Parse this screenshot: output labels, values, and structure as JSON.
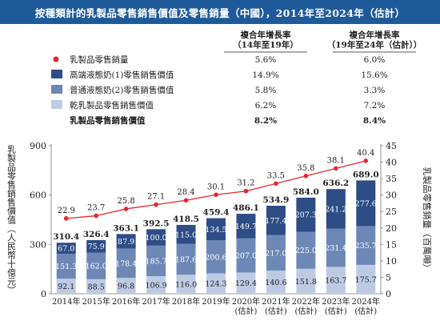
{
  "title": "按種類計的乳製品零售銷售價值及零售銷量（中國），2014年至2024年（估計）",
  "cagr_headers": [
    "複合年增長率\n（14年至19年）",
    "複合年增長率\n（19年至24年（估計））"
  ],
  "legend": [
    {
      "label": "乳製品零售銷量",
      "kind": "line-marker",
      "color": "#e8262c",
      "cagr": [
        "5.6%",
        "6.0%"
      ]
    },
    {
      "label": "高端液態奶(1)零售銷售價值",
      "kind": "box",
      "color": "#2e4d86",
      "cagr": [
        "14.9%",
        "15.6%"
      ]
    },
    {
      "label": "普通液態奶(2)零售銷售價值",
      "kind": "box",
      "color": "#6d88b6",
      "cagr": [
        "5.8%",
        "3.3%"
      ]
    },
    {
      "label": "乾乳製品零售銷售價值",
      "kind": "box",
      "color": "#bccbe3",
      "cagr": [
        "6.2%",
        "7.2%"
      ]
    },
    {
      "label": "乳製品零售銷售價值",
      "kind": "total",
      "color": "",
      "cagr": [
        "8.2%",
        "8.4%"
      ],
      "bold": true
    }
  ],
  "chart_data": {
    "type": "bar",
    "stacked": true,
    "categories": [
      "2014年",
      "2015年",
      "2016年",
      "2017年",
      "2018年",
      "2019年",
      "2020年\n(估計)",
      "2021年\n(估計)",
      "2022年\n(估計)",
      "2023年\n(估計)",
      "2024年\n(估計)"
    ],
    "series": [
      {
        "name": "乾乳製品零售銷售價值",
        "color": "#bccbe3",
        "values": [
          92.1,
          88.5,
          96.8,
          106.9,
          116.0,
          124.3,
          129.4,
          140.6,
          151.8,
          163.7,
          175.7
        ]
      },
      {
        "name": "普通液態奶(2)零售銷售價值",
        "color": "#6d88b6",
        "values": [
          151.3,
          162.0,
          178.4,
          185.7,
          187.6,
          200.6,
          207.0,
          217.0,
          225.0,
          231.4,
          235.7
        ]
      },
      {
        "name": "高端液態奶(1)零售銷售價值",
        "color": "#2e4d86",
        "values": [
          67.0,
          75.9,
          87.9,
          100.0,
          115.0,
          134.5,
          149.7,
          177.4,
          207.3,
          241.2,
          277.6
        ]
      }
    ],
    "totals": [
      "310.4",
      "326.4",
      "363.1",
      "392.5",
      "418.5",
      "459.4",
      "486.1",
      "534.9",
      "584.0",
      "636.2",
      "689.0"
    ],
    "line": {
      "name": "乳製品零售銷量",
      "color": "#e8262c",
      "values": [
        22.9,
        23.7,
        25.8,
        27.1,
        28.4,
        30.1,
        31.2,
        33.5,
        35.8,
        38.1,
        40.4
      ],
      "labels": [
        "22.9",
        "23.7",
        "25.8",
        "27.1",
        "28.4",
        "30.1",
        "31.2",
        "33.5",
        "35.8",
        "38.1",
        "40.4"
      ]
    },
    "ylabel_left": "乳製品零售銷售價值（人民幣十億元）",
    "ylabel_right": "乳製品零售銷量（百萬噸）",
    "ylim_left": [
      0,
      900
    ],
    "yticks_left": [
      0,
      300,
      600,
      900
    ],
    "ylim_right": [
      0,
      45
    ],
    "yticks_right": [
      0,
      5,
      10,
      15,
      20,
      25,
      30,
      35,
      40,
      45
    ],
    "grid": false
  }
}
